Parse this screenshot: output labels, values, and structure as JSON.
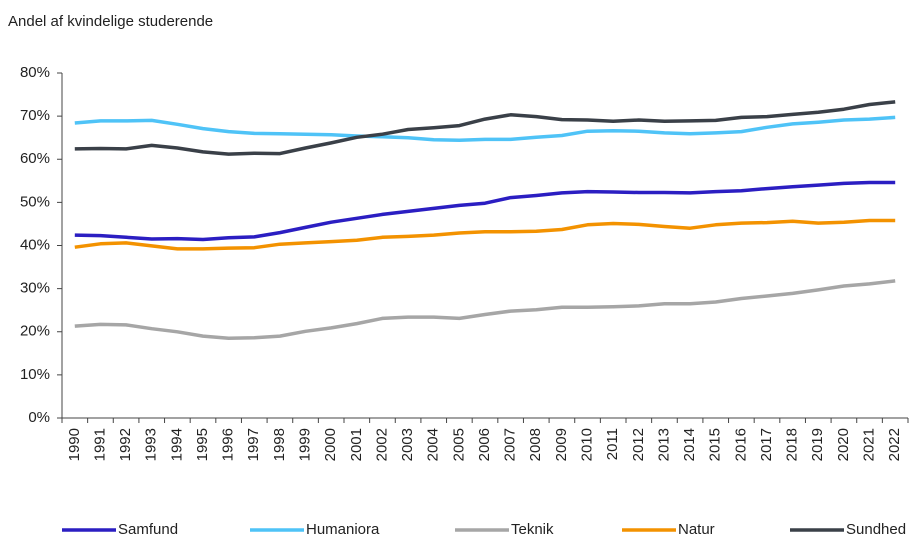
{
  "chart_data": {
    "type": "line",
    "title": "Andel af kvindelige studerende",
    "categories": [
      "1990",
      "1991",
      "1992",
      "1993",
      "1994",
      "1995",
      "1996",
      "1997",
      "1998",
      "1999",
      "2000",
      "2001",
      "2002",
      "2003",
      "2004",
      "2005",
      "2006",
      "2007",
      "2008",
      "2009",
      "2010",
      "2011",
      "2012",
      "2013",
      "2014",
      "2015",
      "2016",
      "2017",
      "2018",
      "2019",
      "2020",
      "2021",
      "2022"
    ],
    "ylim": [
      0,
      80
    ],
    "yticks": [
      {
        "value": 0,
        "label": "0%"
      },
      {
        "value": 10,
        "label": "10%"
      },
      {
        "value": 20,
        "label": "20%"
      },
      {
        "value": 30,
        "label": "30%"
      },
      {
        "value": 40,
        "label": "40%"
      },
      {
        "value": 50,
        "label": "50%"
      },
      {
        "value": 60,
        "label": "60%"
      },
      {
        "value": 70,
        "label": "70%"
      },
      {
        "value": 80,
        "label": "80%"
      }
    ],
    "legend": "bottom",
    "series": [
      {
        "name": "Samfund",
        "color": "#2b1ec2",
        "values": [
          42.4,
          42.3,
          41.9,
          41.5,
          41.6,
          41.4,
          41.8,
          42.0,
          43.0,
          44.2,
          45.4,
          46.3,
          47.2,
          47.9,
          48.6,
          49.3,
          49.8,
          51.1,
          51.6,
          52.2,
          52.5,
          52.4,
          52.3,
          52.3,
          52.2,
          52.5,
          52.7,
          53.2,
          53.6,
          54.0,
          54.4,
          54.6,
          54.6
        ]
      },
      {
        "name": "Humaniora",
        "color": "#4fc3f7",
        "values": [
          68.4,
          68.9,
          68.9,
          69.0,
          68.1,
          67.1,
          66.4,
          66.0,
          65.9,
          65.8,
          65.7,
          65.4,
          65.2,
          65.0,
          64.5,
          64.4,
          64.6,
          64.6,
          65.1,
          65.5,
          66.5,
          66.6,
          66.5,
          66.1,
          65.9,
          66.1,
          66.4,
          67.4,
          68.2,
          68.6,
          69.1,
          69.3,
          69.7
        ]
      },
      {
        "name": "Teknik",
        "color": "#a6a6a6",
        "values": [
          21.3,
          21.7,
          21.6,
          20.7,
          20.0,
          19.0,
          18.5,
          18.6,
          19.0,
          20.1,
          20.9,
          21.9,
          23.1,
          23.4,
          23.4,
          23.1,
          24.0,
          24.8,
          25.1,
          25.7,
          25.7,
          25.8,
          26.0,
          26.5,
          26.5,
          26.9,
          27.7,
          28.3,
          28.9,
          29.7,
          30.6,
          31.1,
          31.8
        ]
      },
      {
        "name": "Natur",
        "color": "#f39200",
        "values": [
          39.6,
          40.4,
          40.6,
          39.9,
          39.2,
          39.2,
          39.4,
          39.5,
          40.3,
          40.6,
          40.9,
          41.2,
          41.9,
          42.1,
          42.4,
          42.9,
          43.2,
          43.2,
          43.3,
          43.7,
          44.8,
          45.1,
          44.9,
          44.4,
          44.0,
          44.8,
          45.2,
          45.3,
          45.6,
          45.2,
          45.4,
          45.8,
          45.8
        ]
      },
      {
        "name": "Sundhed",
        "color": "#3a4048",
        "values": [
          62.4,
          62.5,
          62.4,
          63.2,
          62.6,
          61.7,
          61.2,
          61.4,
          61.3,
          62.6,
          63.8,
          65.1,
          65.8,
          66.9,
          67.3,
          67.8,
          69.3,
          70.3,
          69.9,
          69.2,
          69.1,
          68.8,
          69.1,
          68.8,
          68.9,
          69.0,
          69.7,
          69.9,
          70.4,
          70.9,
          71.6,
          72.7,
          73.3
        ]
      }
    ]
  }
}
